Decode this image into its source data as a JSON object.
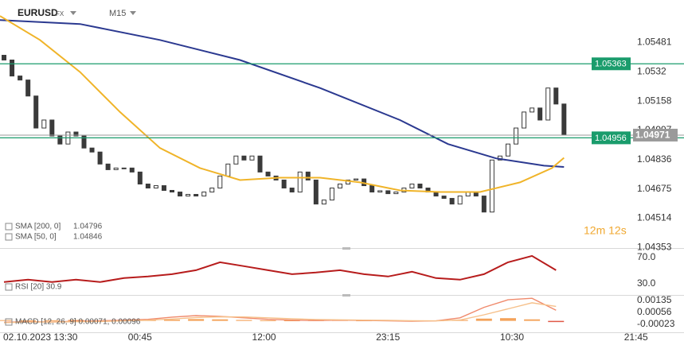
{
  "header": {
    "symbol": "EURUSD",
    "market": "FX",
    "timeframe": "M15"
  },
  "countdown": "12m 12s",
  "chart_data": [
    {
      "type": "candlestick",
      "xlim": [
        -0.5,
        85
      ],
      "ylim": [
        1.0435,
        1.05714
      ],
      "yticks": [
        1.05481,
        1.0532,
        1.05158,
        1.04997,
        1.04836,
        1.04675,
        1.04514,
        1.04353
      ],
      "xticks": [
        {
          "value": 1.5,
          "label": "02.10.2023 13:30"
        },
        {
          "value": 17,
          "label": "00:45"
        },
        {
          "value": 32.5,
          "label": "12:00"
        },
        {
          "value": 48,
          "label": "23:15"
        },
        {
          "value": 63.5,
          "label": "10:30"
        },
        {
          "value": 79,
          "label": "21:45"
        }
      ],
      "up_color": "#ffffff",
      "down_color": "#3a3a3a",
      "open": [
        1.0541,
        1.05384,
        1.05296,
        1.05274,
        1.05186,
        1.0501,
        1.05054,
        1.04966,
        1.04922,
        1.04988,
        1.04966,
        1.049,
        1.04878,
        1.04812,
        1.04781,
        1.0479,
        1.0479,
        1.04768,
        1.04702,
        1.0468,
        1.04693,
        1.04667,
        1.04658,
        1.04636,
        1.04645,
        1.04636,
        1.04658,
        1.0468,
        1.04746,
        1.04812,
        1.04856,
        1.04834,
        1.04856,
        1.04768,
        1.04746,
        1.04724,
        1.0468,
        1.04658,
        1.04768,
        1.04724,
        1.04592,
        1.04614,
        1.0468,
        1.04702,
        1.04724,
        1.0473,
        1.04693,
        1.04658,
        1.04665,
        1.04649,
        1.04658,
        1.0468,
        1.04702,
        1.0468,
        1.04658,
        1.04636,
        1.04623,
        1.04592,
        1.04636,
        1.04658,
        1.04636,
        1.04548,
        1.04834,
        1.04856,
        1.04922,
        1.0501,
        1.05098,
        1.0512,
        1.05054,
        1.0523,
        1.05142
      ],
      "close": [
        1.05384,
        1.05296,
        1.05274,
        1.05186,
        1.0501,
        1.05054,
        1.04966,
        1.04922,
        1.04988,
        1.04966,
        1.049,
        1.04878,
        1.04812,
        1.04781,
        1.0479,
        1.0479,
        1.04768,
        1.04702,
        1.0468,
        1.04693,
        1.04667,
        1.04658,
        1.04636,
        1.04645,
        1.04636,
        1.04658,
        1.0468,
        1.04746,
        1.04812,
        1.04856,
        1.04834,
        1.04856,
        1.04768,
        1.04746,
        1.04724,
        1.0468,
        1.04658,
        1.04768,
        1.04724,
        1.04592,
        1.04614,
        1.0468,
        1.04702,
        1.04724,
        1.0473,
        1.04693,
        1.04658,
        1.04665,
        1.04649,
        1.04658,
        1.0468,
        1.04702,
        1.0468,
        1.04658,
        1.04636,
        1.04623,
        1.04592,
        1.04636,
        1.04658,
        1.04636,
        1.04548,
        1.04834,
        1.04856,
        1.04922,
        1.0501,
        1.05098,
        1.0512,
        1.05054,
        1.0523,
        1.05142,
        1.04971
      ],
      "series": [
        {
          "name": "SMA [200, 0]",
          "color": "#2b3990",
          "x": [
            -0.5,
            9.5,
            19.5,
            29.5,
            39.5,
            49.5,
            55.5,
            61.5,
            67.5,
            70
          ],
          "values": [
            1.05604,
            1.05582,
            1.05494,
            1.05384,
            1.0523,
            1.05054,
            1.04922,
            1.04843,
            1.04803,
            1.04796
          ]
        },
        {
          "name": "SMA [50, 0]",
          "color": "#f0b429",
          "x": [
            -0.5,
            4.5,
            9.5,
            14.5,
            19.5,
            24.5,
            29.5,
            34.5,
            39.5,
            44.5,
            49.5,
            54.5,
            59.5,
            64.5,
            68.5,
            70
          ],
          "values": [
            1.05626,
            1.05494,
            1.05318,
            1.05098,
            1.049,
            1.0479,
            1.04724,
            1.04737,
            1.04737,
            1.04711,
            1.04667,
            1.04658,
            1.04658,
            1.04711,
            1.0479,
            1.04846
          ]
        }
      ],
      "levels": [
        {
          "value": 1.05363,
          "color": "#1a9c6c"
        },
        {
          "value": 1.04956,
          "color": "#1a9c6c"
        }
      ],
      "current": {
        "value": 1.04971,
        "color": "#9a9a9a"
      }
    },
    {
      "type": "line",
      "legend": "RSI [20]  30.9",
      "xlim": [
        -0.5,
        85
      ],
      "ylim": [
        14,
        82
      ],
      "yticks": [
        {
          "value": 70,
          "label": "70.0"
        },
        {
          "value": 30,
          "label": "30.0"
        }
      ],
      "series": [
        {
          "name": "RSI",
          "color": "#b71c1c",
          "x": [
            0,
            3,
            6,
            9,
            12,
            15,
            18,
            21,
            24,
            27,
            30,
            33,
            36,
            39,
            42,
            45,
            48,
            51,
            54,
            57,
            60,
            63,
            66,
            69
          ],
          "values": [
            32.4,
            36.1,
            32.4,
            36.1,
            32.4,
            38.5,
            40.9,
            44.5,
            50.6,
            62.7,
            56.7,
            50.6,
            44.5,
            47.0,
            50.6,
            44.5,
            40.9,
            48.2,
            38.5,
            36.1,
            44.5,
            62.7,
            72.4,
            50.6
          ]
        }
      ]
    },
    {
      "type": "macd",
      "legend": "MACD [12, 26, 9]  0.00071, 0.00096",
      "xlim": [
        -0.5,
        85
      ],
      "ylim": [
        -0.00076,
        0.00167
      ],
      "yticks": [
        0.00135,
        0.00056,
        -0.00023
      ],
      "x": [
        0,
        3,
        6,
        9,
        12,
        15,
        18,
        21,
        24,
        27,
        30,
        33,
        36,
        39,
        42,
        45,
        48,
        51,
        54,
        57,
        60,
        63,
        66,
        69
      ],
      "histogram": {
        "up_color": "#f4a259",
        "down_color": "#e05a47",
        "values": [
          5e-05,
          3e-05,
          4e-05,
          6e-05,
          4e-05,
          3e-05,
          5e-05,
          8e-05,
          0.00012,
          0.0001,
          6e-05,
          4e-05,
          3e-05,
          4e-05,
          5e-05,
          3e-05,
          4e-05,
          2e-05,
          3e-05,
          6e-05,
          0.00015,
          0.00018,
          0.0001,
          -8e-05
        ]
      },
      "series": [
        {
          "name": "MACD",
          "color": "#f08a6c",
          "values": [
            -0.0001,
            -5e-05,
            -8e-05,
            -2e-05,
            0.0,
            5e-05,
            0.0001,
            0.00025,
            0.00035,
            0.0003,
            0.0002,
            0.0001,
            5e-05,
            2e-05,
            5e-05,
            3e-05,
            0.0,
            -2e-05,
            0.0,
            0.0002,
            0.0009,
            0.0014,
            0.0015,
            0.00071
          ]
        },
        {
          "name": "Signal",
          "color": "#f6c08a",
          "values": [
            -0.00012,
            -8e-05,
            -8e-05,
            -6e-05,
            -4e-05,
            0.0,
            5e-05,
            0.00012,
            0.00022,
            0.00027,
            0.00026,
            0.0002,
            0.00014,
            9e-05,
            7e-05,
            5e-05,
            3e-05,
            1e-05,
            0.0,
            6e-05,
            0.0004,
            0.0008,
            0.0012,
            0.00096
          ]
        }
      ]
    }
  ]
}
